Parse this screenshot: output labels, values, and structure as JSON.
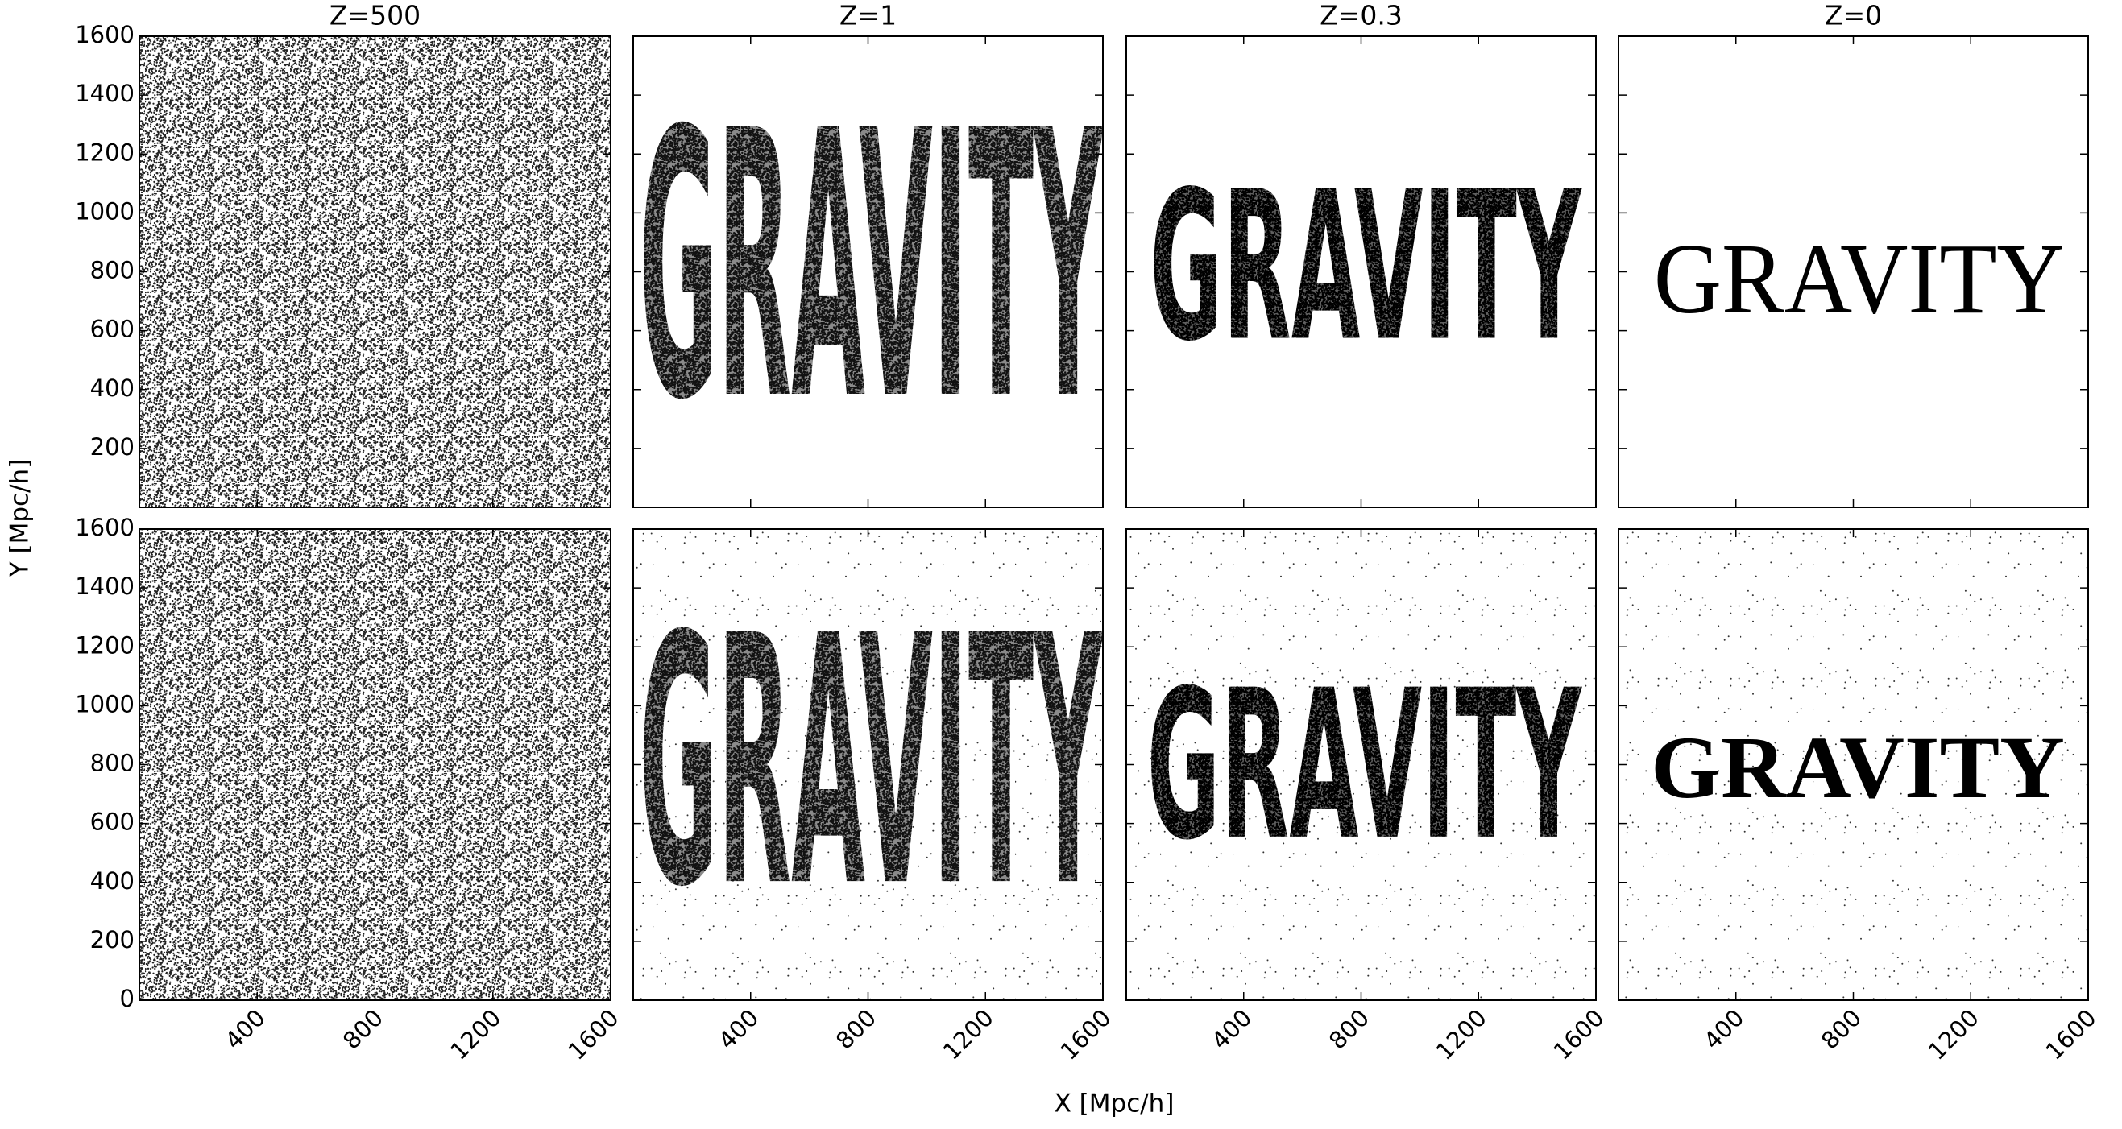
{
  "figure": {
    "xlabel": "X [Mpc/h]",
    "ylabel": "Y [Mpc/h]"
  },
  "chart_data": [
    {
      "type": "scatter",
      "title": "Z=500",
      "xlim": [
        0,
        1600
      ],
      "ylim": [
        0,
        1600
      ],
      "xticks": [
        400,
        800,
        1200,
        1600
      ],
      "yticks": [
        200,
        400,
        600,
        800,
        1000,
        1200,
        1400,
        1600
      ],
      "xticklabels": false,
      "yticklabels": true
    },
    {
      "type": "scatter",
      "title": "Z=1",
      "shape_text": "GRAVITY",
      "xlim": [
        0,
        1600
      ],
      "ylim": [
        0,
        1600
      ],
      "xticks": [
        400,
        800,
        1200,
        1600
      ],
      "yticks": [
        200,
        400,
        600,
        800,
        1000,
        1200,
        1400,
        1600
      ],
      "xticklabels": false,
      "yticklabels": false
    },
    {
      "type": "scatter",
      "title": "Z=0.3",
      "shape_text": "GRAVITY",
      "xlim": [
        0,
        1600
      ],
      "ylim": [
        0,
        1600
      ],
      "xticks": [
        400,
        800,
        1200,
        1600
      ],
      "yticks": [
        200,
        400,
        600,
        800,
        1000,
        1200,
        1400,
        1600
      ],
      "xticklabels": false,
      "yticklabels": false
    },
    {
      "type": "scatter",
      "title": "Z=0",
      "shape_text": "GRAVITY",
      "xlim": [
        0,
        1600
      ],
      "ylim": [
        0,
        1600
      ],
      "xticks": [
        400,
        800,
        1200,
        1600
      ],
      "yticks": [
        200,
        400,
        600,
        800,
        1000,
        1200,
        1400,
        1600
      ],
      "xticklabels": false,
      "yticklabels": false
    },
    {
      "type": "scatter",
      "xlim": [
        0,
        1600
      ],
      "ylim": [
        0,
        1600
      ],
      "xticks": [
        400,
        800,
        1200,
        1600
      ],
      "yticks": [
        0,
        200,
        400,
        600,
        800,
        1000,
        1200,
        1400,
        1600
      ],
      "xticklabels": true,
      "yticklabels": true
    },
    {
      "type": "scatter",
      "shape_text": "GRAVITY",
      "xlim": [
        0,
        1600
      ],
      "ylim": [
        0,
        1600
      ],
      "xticks": [
        400,
        800,
        1200,
        1600
      ],
      "yticks": [
        200,
        400,
        600,
        800,
        1000,
        1200,
        1400,
        1600
      ],
      "xticklabels": true,
      "yticklabels": false
    },
    {
      "type": "scatter",
      "shape_text": "GRAVITY",
      "xlim": [
        0,
        1600
      ],
      "ylim": [
        0,
        1600
      ],
      "xticks": [
        400,
        800,
        1200,
        1600
      ],
      "yticks": [
        200,
        400,
        600,
        800,
        1000,
        1200,
        1400,
        1600
      ],
      "xticklabels": true,
      "yticklabels": false
    },
    {
      "type": "scatter",
      "shape_text": "GRAVITY",
      "xlim": [
        0,
        1600
      ],
      "ylim": [
        0,
        1600
      ],
      "xticks": [
        400,
        800,
        1200,
        1600
      ],
      "yticks": [
        200,
        400,
        600,
        800,
        1000,
        1200,
        1400,
        1600
      ],
      "xticklabels": true,
      "yticklabels": false
    }
  ]
}
